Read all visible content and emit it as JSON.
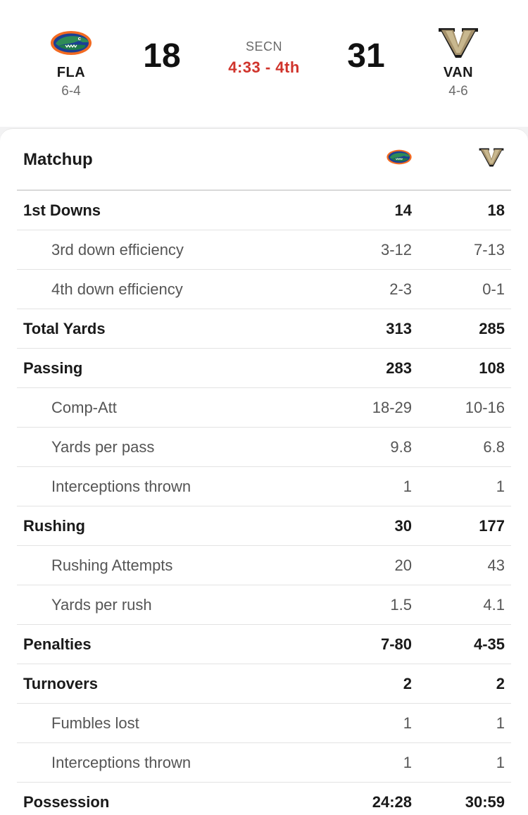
{
  "game": {
    "away": {
      "abbr": "FLA",
      "record": "6-4",
      "score": "18"
    },
    "home": {
      "abbr": "VAN",
      "record": "4-6",
      "score": "31"
    },
    "network": "SECN",
    "clock": "4:33 - 4th"
  },
  "colors": {
    "clock_red": "#d0342c",
    "gator_blue": "#1c3f94",
    "gator_orange": "#f26a21",
    "gator_green": "#1f7a4a",
    "vandy_gold": "#a4906a",
    "vandy_black": "#1a1a1a"
  },
  "icons": {
    "away_logo": "florida-gator-logo",
    "home_logo": "vanderbilt-v-logo"
  },
  "matchup": {
    "title": "Matchup",
    "rows": [
      {
        "label": "1st Downs",
        "away": "14",
        "home": "18",
        "type": "main"
      },
      {
        "label": "3rd down efficiency",
        "away": "3-12",
        "home": "7-13",
        "type": "sub"
      },
      {
        "label": "4th down efficiency",
        "away": "2-3",
        "home": "0-1",
        "type": "sub"
      },
      {
        "label": "Total Yards",
        "away": "313",
        "home": "285",
        "type": "main"
      },
      {
        "label": "Passing",
        "away": "283",
        "home": "108",
        "type": "main"
      },
      {
        "label": "Comp-Att",
        "away": "18-29",
        "home": "10-16",
        "type": "sub"
      },
      {
        "label": "Yards per pass",
        "away": "9.8",
        "home": "6.8",
        "type": "sub"
      },
      {
        "label": "Interceptions thrown",
        "away": "1",
        "home": "1",
        "type": "sub"
      },
      {
        "label": "Rushing",
        "away": "30",
        "home": "177",
        "type": "main"
      },
      {
        "label": "Rushing Attempts",
        "away": "20",
        "home": "43",
        "type": "sub"
      },
      {
        "label": "Yards per rush",
        "away": "1.5",
        "home": "4.1",
        "type": "sub"
      },
      {
        "label": "Penalties",
        "away": "7-80",
        "home": "4-35",
        "type": "main"
      },
      {
        "label": "Turnovers",
        "away": "2",
        "home": "2",
        "type": "main"
      },
      {
        "label": "Fumbles lost",
        "away": "1",
        "home": "1",
        "type": "sub"
      },
      {
        "label": "Interceptions thrown",
        "away": "1",
        "home": "1",
        "type": "sub"
      },
      {
        "label": "Possession",
        "away": "24:28",
        "home": "30:59",
        "type": "main"
      }
    ]
  }
}
